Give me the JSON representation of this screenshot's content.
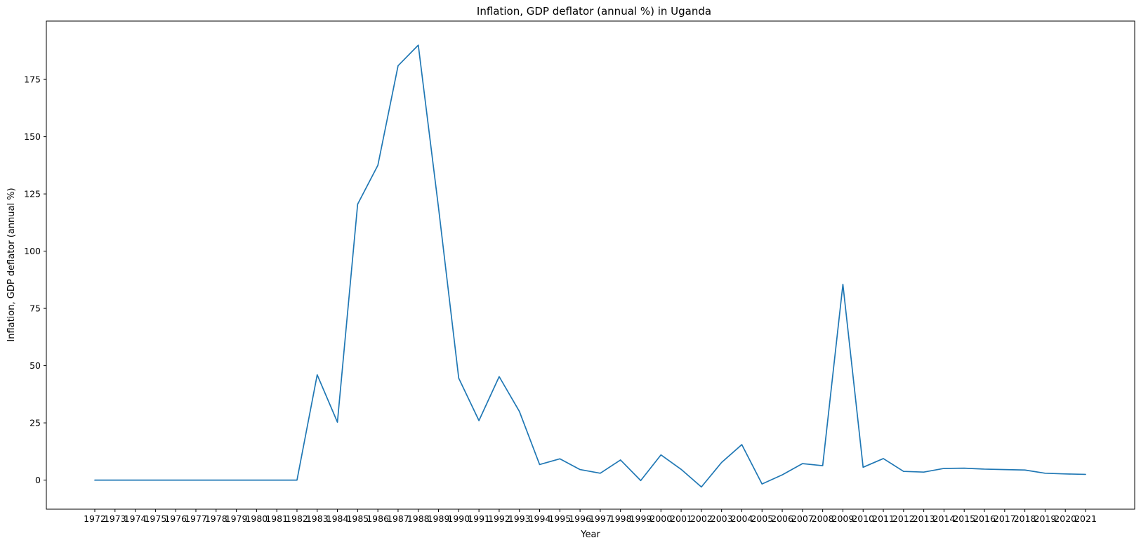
{
  "chart_data": {
    "type": "line",
    "title": "Inflation, GDP deflator (annual %) in Uganda",
    "xlabel": "Year",
    "ylabel": "Inflation, GDP deflator (annual %)",
    "x": [
      "1972",
      "1973",
      "1974",
      "1975",
      "1976",
      "1977",
      "1978",
      "1979",
      "1980",
      "1981",
      "1982",
      "1983",
      "1984",
      "1985",
      "1986",
      "1987",
      "1988",
      "1989",
      "1990",
      "1991",
      "1992",
      "1993",
      "1994",
      "1995",
      "1996",
      "1997",
      "1998",
      "1999",
      "2000",
      "2001",
      "2002",
      "2003",
      "2004",
      "2005",
      "2006",
      "2007",
      "2008",
      "2009",
      "2010",
      "2011",
      "2012",
      "2013",
      "2014",
      "2015",
      "2016",
      "2017",
      "2018",
      "2019",
      "2020",
      "2021"
    ],
    "series": [
      {
        "color": "#1f77b4",
        "values": [
          0,
          0,
          0,
          0,
          0,
          0,
          0,
          0,
          0,
          0,
          0,
          46,
          25.3,
          120.5,
          137.5,
          181,
          190,
          119,
          44.5,
          26,
          45.2,
          30,
          6.8,
          9.3,
          4.6,
          3,
          8.8,
          -0.2,
          11,
          4.7,
          -3,
          7.7,
          15.5,
          -1.7,
          2.3,
          7.2,
          6.3,
          85.5,
          5.6,
          9.4,
          3.8,
          3.5,
          5.1,
          5.2,
          4.8,
          4.6,
          4.4,
          3,
          2.7,
          2.5
        ]
      }
    ],
    "yticks": [
      0,
      25,
      50,
      75,
      100,
      125,
      150,
      175
    ],
    "ylim": [
      -12.7,
      200.5
    ],
    "grid": false,
    "legend": "none"
  }
}
